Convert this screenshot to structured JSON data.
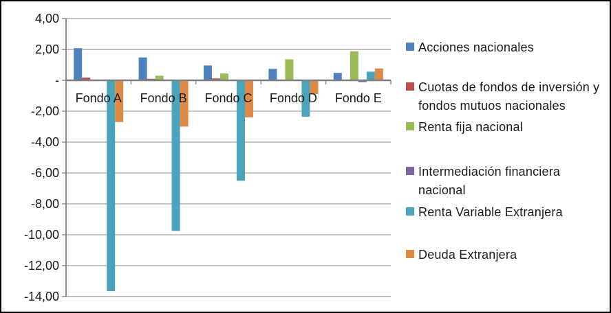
{
  "window": {
    "background_color": "#ffffff",
    "border_color": "#000000"
  },
  "chart_data": {
    "type": "bar",
    "title": "",
    "xlabel": "",
    "ylabel": "",
    "categories": [
      "Fondo A",
      "Fondo B",
      "Fondo C",
      "Fondo D",
      "Fondo E"
    ],
    "series": [
      {
        "name": "Acciones nacionales",
        "color": "#4F81BD",
        "values": [
          2.08,
          1.48,
          0.96,
          0.74,
          0.48
        ]
      },
      {
        "name": "Cuotas de fondos de inversión y fondos mutuos nacionales",
        "color": "#C0504D",
        "values": [
          0.18,
          0.1,
          0.12,
          0,
          0
        ]
      },
      {
        "name": "Renta fija nacional",
        "color": "#9BBB59",
        "values": [
          0,
          0.3,
          0.44,
          1.36,
          1.88
        ]
      },
      {
        "name": "Intermediación financiera nacional",
        "color": "#8064A2",
        "values": [
          0,
          0,
          0,
          0,
          -0.12
        ]
      },
      {
        "name": "Renta Variable Extranjera",
        "color": "#4BA3BC",
        "values": [
          -13.65,
          -9.75,
          -6.5,
          -2.36,
          0.56
        ]
      },
      {
        "name": "Deuda Extranjera",
        "color": "#DE8C45",
        "values": [
          -2.7,
          -3.0,
          -2.4,
          -0.89,
          0.77
        ]
      }
    ],
    "y_ticks": [
      {
        "value": 4,
        "label": "4,00"
      },
      {
        "value": 2,
        "label": "2,00"
      },
      {
        "value": 0,
        "label": "-"
      },
      {
        "value": -2,
        "label": "-2,00"
      },
      {
        "value": -4,
        "label": "-4,00"
      },
      {
        "value": -6,
        "label": "-6,00"
      },
      {
        "value": -8,
        "label": "-8,00"
      },
      {
        "value": -10,
        "label": "-10,00"
      },
      {
        "value": -12,
        "label": "-12,00"
      },
      {
        "value": -14,
        "label": "-14,00"
      }
    ],
    "ylim": [
      -14,
      4
    ],
    "grid": true,
    "gridline_color": "#A0A0A0",
    "axis_line_color": "#7F7F7F",
    "legend_position": "right"
  }
}
